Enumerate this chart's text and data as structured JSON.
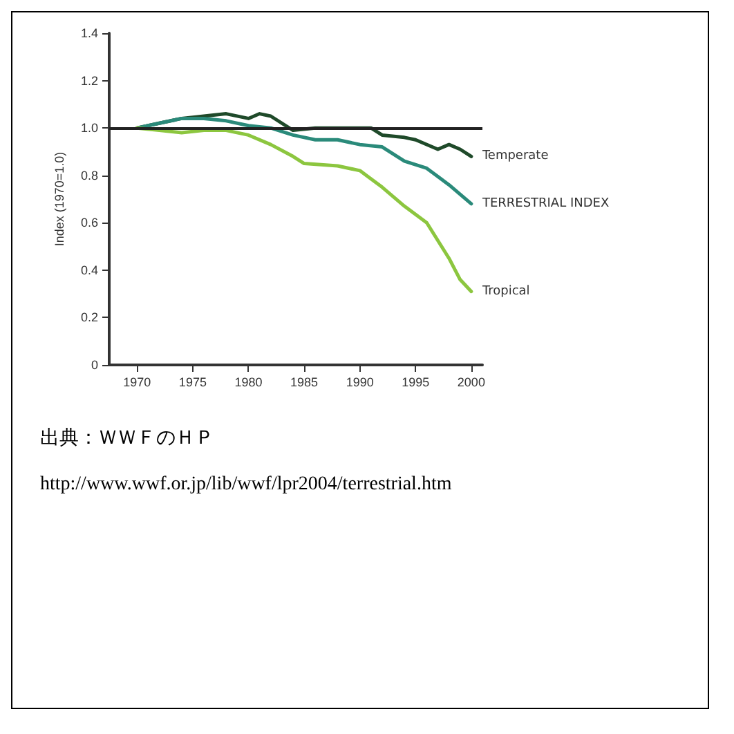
{
  "chart_data": {
    "type": "line",
    "ylabel": "Index (1970=1.0)",
    "xlim": [
      1967.5,
      2001
    ],
    "xticks": [
      1970,
      1975,
      1980,
      1985,
      1990,
      1995,
      2000
    ],
    "ylim": [
      0,
      1.4
    ],
    "yticks": [
      0,
      0.2,
      0.4,
      0.6,
      0.8,
      {
        "value": 1,
        "label": "1.0"
      },
      1.2,
      1.4
    ],
    "grid": false,
    "legend": false,
    "marker": "none",
    "line_style": "solid",
    "ref_lines": [
      {
        "axis": "y",
        "value": 1,
        "color": "#222222"
      }
    ],
    "series": [
      {
        "name": "Temperate",
        "color": "#1f4a2a",
        "x": [
          1970,
          1972,
          1974,
          1976,
          1978,
          1980,
          1981,
          1982,
          1984,
          1986,
          1988,
          1990,
          1991,
          1992,
          1994,
          1995,
          1997,
          1998,
          1999,
          2000
        ],
        "values": [
          1.0,
          1.02,
          1.04,
          1.05,
          1.06,
          1.04,
          1.06,
          1.05,
          0.99,
          1.0,
          1.0,
          1.0,
          1.0,
          0.97,
          0.96,
          0.95,
          0.91,
          0.93,
          0.91,
          0.88
        ]
      },
      {
        "name": "TERRESTRIAL INDEX",
        "color": "#2a8a7a",
        "x": [
          1970,
          1972,
          1974,
          1976,
          1978,
          1980,
          1982,
          1984,
          1986,
          1988,
          1990,
          1992,
          1994,
          1996,
          1998,
          2000
        ],
        "values": [
          1.0,
          1.02,
          1.04,
          1.04,
          1.03,
          1.01,
          1.0,
          0.97,
          0.95,
          0.95,
          0.93,
          0.92,
          0.86,
          0.83,
          0.76,
          0.68
        ]
      },
      {
        "name": "Tropical",
        "color": "#8cc63f",
        "x": [
          1970,
          1972,
          1974,
          1976,
          1978,
          1980,
          1982,
          1984,
          1985,
          1988,
          1990,
          1992,
          1994,
          1996,
          1998,
          1999,
          2000
        ],
        "values": [
          1.0,
          0.99,
          0.98,
          0.99,
          0.99,
          0.97,
          0.93,
          0.88,
          0.85,
          0.84,
          0.82,
          0.75,
          0.67,
          0.6,
          0.45,
          0.36,
          0.31
        ]
      }
    ],
    "annotations": [
      "出典：ＷＷＦのＨＰ",
      "http://www.wwf.or.jp/lib/wwf/lpr2004/terrestrial.htm"
    ]
  }
}
